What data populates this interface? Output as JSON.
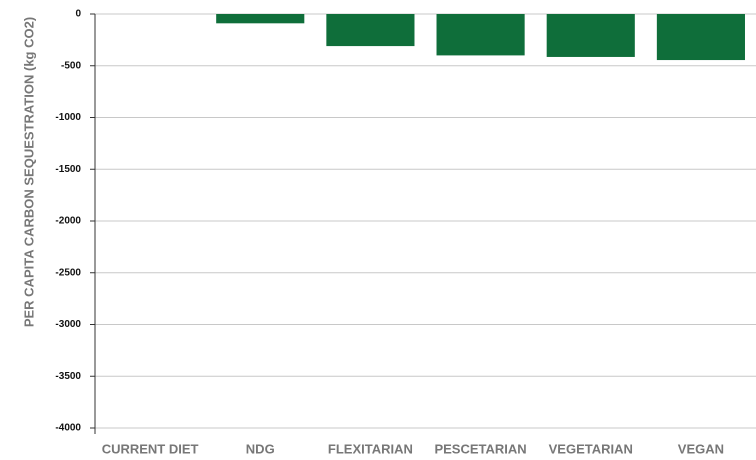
{
  "chart_data": {
    "type": "bar",
    "y_label": "PER CAPITA CARBON SEQUESTRATION (kg CO2)",
    "categories": [
      "CURRENT DIET",
      "NDG",
      "FLEXITARIAN",
      "PESCETARIAN",
      "VEGETARIAN",
      "VEGAN"
    ],
    "values": [
      0,
      -90,
      -310,
      -400,
      -415,
      -445
    ],
    "color": "#0f6e3a",
    "ylim": [
      0,
      -4000
    ],
    "yticks": [
      0,
      -500,
      -1000,
      -1500,
      -2000,
      -2500,
      -3000,
      -3500,
      -4000
    ],
    "grid": true
  }
}
